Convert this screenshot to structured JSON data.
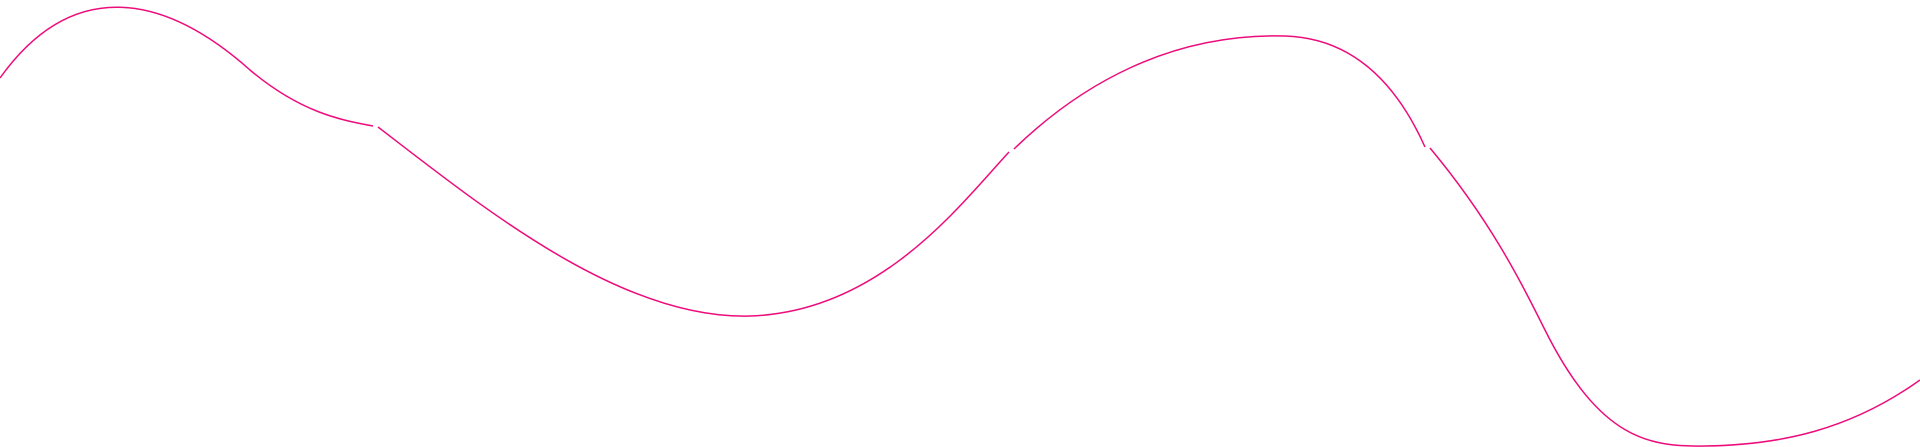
{
  "decoration": {
    "stroke_color": "#ec0c7c",
    "background_color": "#ffffff",
    "segment_count": 4
  }
}
